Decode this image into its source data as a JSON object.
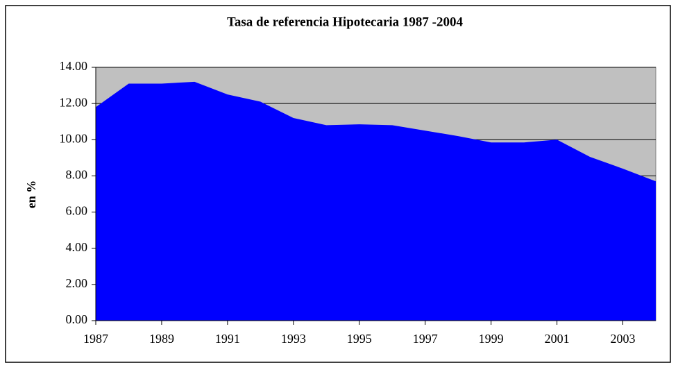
{
  "chart_data": {
    "type": "area",
    "title": "Tasa de referencia Hipotecaria 1987 -2004",
    "y_label": "en %",
    "x": [
      1987,
      1988,
      1989,
      1990,
      1991,
      1992,
      1993,
      1994,
      1995,
      1996,
      1997,
      1998,
      1999,
      2000,
      2001,
      2002,
      2003,
      2004
    ],
    "values": [
      11.8,
      13.1,
      13.1,
      13.2,
      12.5,
      12.1,
      11.2,
      10.8,
      10.85,
      10.8,
      10.5,
      10.2,
      9.85,
      9.85,
      10.0,
      9.05,
      8.4,
      7.7
    ],
    "color": "#0000ff",
    "plot_background": "#c0c0c0",
    "xlim": [
      1987,
      2004
    ],
    "xticks": [
      1987,
      1989,
      1991,
      1993,
      1995,
      1997,
      1999,
      2001,
      2003
    ],
    "ylim": [
      0,
      14
    ],
    "yticks": [
      {
        "value": 0,
        "label": "0.00"
      },
      {
        "value": 2,
        "label": "2.00"
      },
      {
        "value": 4,
        "label": "4.00"
      },
      {
        "value": 6,
        "label": "6.00"
      },
      {
        "value": 8,
        "label": "8.00"
      },
      {
        "value": 10,
        "label": "10.00"
      },
      {
        "value": 12,
        "label": "12.00"
      },
      {
        "value": 14,
        "label": "14.00"
      }
    ],
    "grid": true
  }
}
